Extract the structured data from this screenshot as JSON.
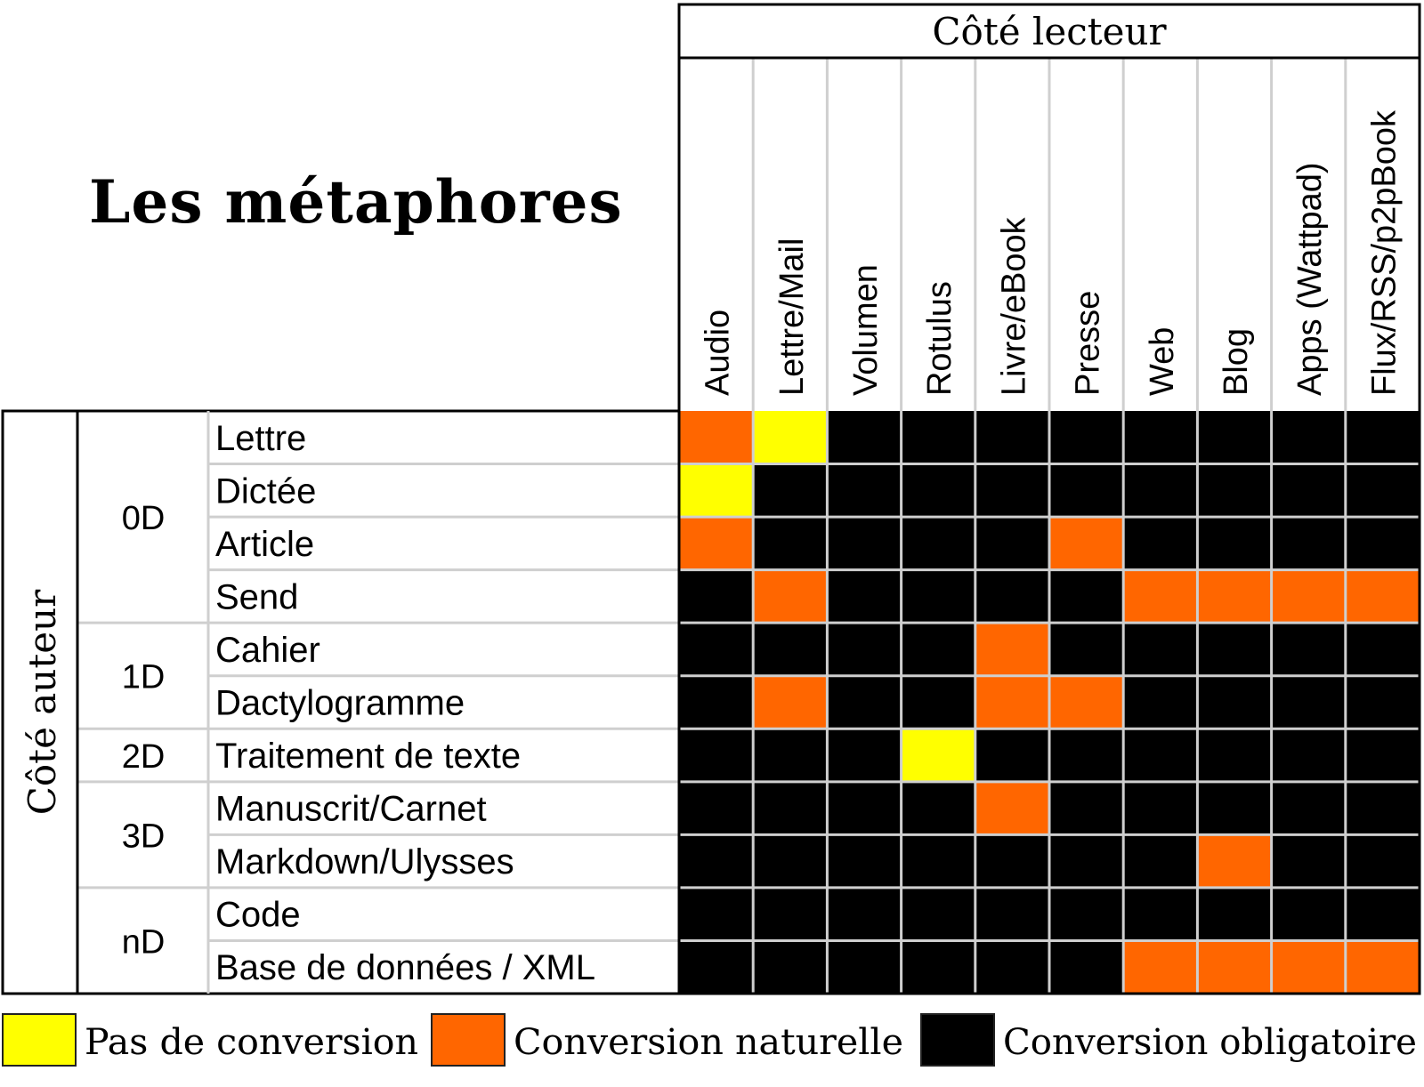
{
  "title": "Les métaphores",
  "chart_data": {
    "type": "heatmap",
    "column_group_label": "Côté lecteur",
    "row_group_label": "Côté auteur",
    "columns": [
      "Audio",
      "Lettre/Mail",
      "Volumen",
      "Rotulus",
      "Livre/eBook",
      "Presse",
      "Web",
      "Blog",
      "Apps (Wattpad)",
      "Flux/RSS/p2pBook"
    ],
    "groups": [
      {
        "name": "0D",
        "rows": [
          "Lettre",
          "Dictée",
          "Article",
          "Send"
        ]
      },
      {
        "name": "1D",
        "rows": [
          "Cahier",
          "Dactylogramme"
        ]
      },
      {
        "name": "2D",
        "rows": [
          "Traitement de texte"
        ]
      },
      {
        "name": "3D",
        "rows": [
          "Manuscrit/Carnet",
          "Markdown/Ulysses"
        ]
      },
      {
        "name": "nD",
        "rows": [
          "Code",
          "Base de données / XML"
        ]
      }
    ],
    "values": [
      [
        1,
        0,
        2,
        2,
        2,
        2,
        2,
        2,
        2,
        2
      ],
      [
        0,
        2,
        2,
        2,
        2,
        2,
        2,
        2,
        2,
        2
      ],
      [
        1,
        2,
        2,
        2,
        2,
        1,
        2,
        2,
        2,
        2
      ],
      [
        2,
        1,
        2,
        2,
        2,
        2,
        1,
        1,
        1,
        1
      ],
      [
        2,
        2,
        2,
        2,
        1,
        2,
        2,
        2,
        2,
        2
      ],
      [
        2,
        1,
        2,
        2,
        1,
        1,
        2,
        2,
        2,
        2
      ],
      [
        2,
        2,
        2,
        0,
        2,
        2,
        2,
        2,
        2,
        2
      ],
      [
        2,
        2,
        2,
        2,
        1,
        2,
        2,
        2,
        2,
        2
      ],
      [
        2,
        2,
        2,
        2,
        2,
        2,
        2,
        1,
        2,
        2
      ],
      [
        2,
        2,
        2,
        2,
        2,
        2,
        2,
        2,
        2,
        2
      ],
      [
        2,
        2,
        2,
        2,
        2,
        2,
        1,
        1,
        1,
        1
      ]
    ],
    "legend": [
      {
        "label": "Pas de conversion",
        "color": "#ffff00"
      },
      {
        "label": "Conversion naturelle",
        "color": "#ff6600"
      },
      {
        "label": "Conversion obligatoire",
        "color": "#000000"
      }
    ]
  }
}
